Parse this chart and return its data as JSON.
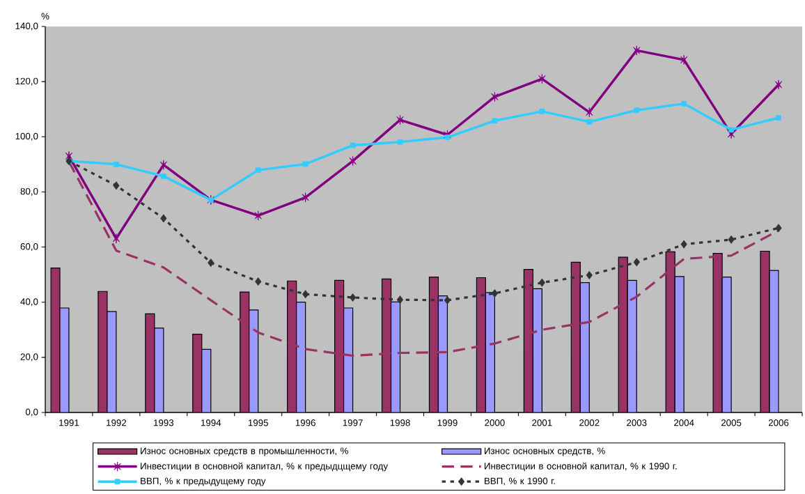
{
  "chart_data": {
    "type": "bar",
    "ylabel": "%",
    "categories": [
      "1991",
      "1992",
      "1993",
      "1994",
      "1995",
      "1996",
      "1997",
      "1998",
      "1999",
      "2000",
      "2001",
      "2002",
      "2003",
      "2004",
      "2005",
      "2006"
    ],
    "ylim": [
      0,
      140
    ],
    "yticks": [
      {
        "value": 0,
        "label": "0,0"
      },
      {
        "value": 20,
        "label": "20,0"
      },
      {
        "value": 40,
        "label": "40,0"
      },
      {
        "value": 60,
        "label": "60,0"
      },
      {
        "value": 80,
        "label": "80,0"
      },
      {
        "value": 100,
        "label": "100,0"
      },
      {
        "value": 120,
        "label": "120,0"
      },
      {
        "value": 140,
        "label": "140,0"
      }
    ],
    "legend": "bottom",
    "series": [
      {
        "name": "Износ основных средств в промышленности, %",
        "color": "#993366",
        "values": [
          52.4,
          43.9,
          35.8,
          28.4,
          43.7,
          47.7,
          47.9,
          48.4,
          49.1,
          48.9,
          51.9,
          54.5,
          56.3,
          58.3,
          57.7,
          58.5
        ]
      },
      {
        "name": "Износ основных средств, %",
        "color": "#9999ff",
        "values": [
          37.9,
          36.6,
          30.6,
          22.9,
          37.2,
          40.0,
          37.9,
          40.1,
          42.3,
          43.5,
          44.9,
          47.1,
          47.9,
          49.3,
          49.1,
          51.5
        ]
      },
      {
        "name": "Инвестиции в основной капитал, % к предыдцщему году",
        "type": "line",
        "color": "#800080",
        "marker": "cross",
        "line_style": "solid",
        "values": [
          93.0,
          63.1,
          89.8,
          77.1,
          71.4,
          78.0,
          91.2,
          106.1,
          100.7,
          114.5,
          121.0,
          108.9,
          131.3,
          127.9,
          101.0,
          118.9
        ]
      },
      {
        "name": "Инвестиции в основной капитал, % к 1990 г.",
        "type": "line",
        "color": "#993366",
        "marker": "none",
        "line_style": "dashed",
        "values": [
          91.0,
          58.7,
          52.6,
          40.7,
          29.0,
          23.0,
          20.6,
          21.6,
          21.9,
          25.0,
          30.0,
          32.8,
          42.0,
          55.7,
          56.9,
          66.0
        ]
      },
      {
        "name": "ВВП, % к предыдущему году",
        "type": "line",
        "color": "#33ccff",
        "marker": "square",
        "line_style": "solid",
        "values": [
          91.2,
          90.0,
          85.7,
          77.1,
          87.9,
          90.1,
          96.9,
          98.1,
          99.8,
          105.8,
          109.2,
          105.4,
          109.6,
          112.0,
          102.5,
          106.9
        ]
      },
      {
        "name": "ВВП, % к 1990 г.",
        "type": "line",
        "color": "#333333",
        "marker": "diamond",
        "line_style": "dotted",
        "values": [
          91.2,
          82.3,
          70.4,
          54.3,
          47.5,
          42.9,
          41.7,
          40.9,
          40.7,
          43.2,
          47.1,
          49.8,
          54.5,
          61.0,
          62.7,
          66.9
        ]
      }
    ]
  }
}
